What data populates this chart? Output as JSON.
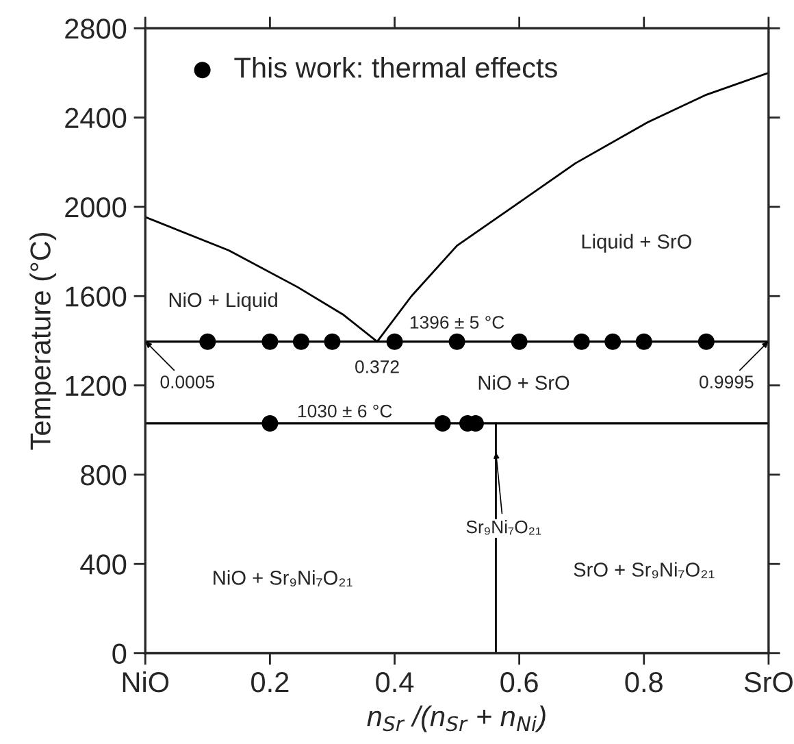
{
  "chart_data": {
    "type": "line",
    "xlabel": "n$_{Sr}$ /(n$_{Sr}$ + n$_{Ni}$)",
    "ylabel": "Temperature (°C)",
    "xlim": [
      0,
      1
    ],
    "xticks": [
      {
        "value": 0,
        "label": "NiO"
      },
      0.2,
      0.4,
      0.6,
      0.8,
      {
        "value": 1,
        "label": "SrO"
      }
    ],
    "ylim": [
      0,
      2800
    ],
    "yticks": [
      0,
      400,
      800,
      1200,
      1600,
      2000,
      2400,
      2800
    ],
    "series": [
      {
        "color": "#000000",
        "x": [
          0,
          0.134,
          0.244,
          0.317,
          0.372
        ],
        "values": [
          1954,
          1805,
          1641,
          1518,
          1396
        ]
      },
      {
        "color": "#000000",
        "x": [
          0.372,
          0.427,
          0.5,
          0.595,
          0.69,
          0.806,
          0.9,
          1.0
        ],
        "values": [
          1396,
          1600,
          1826,
          2010,
          2195,
          2379,
          2502,
          2600
        ]
      },
      {
        "color": "#000000",
        "x": [
          0.5625,
          0.5625
        ],
        "values": [
          0,
          1030
        ]
      },
      {
        "type": "scatter",
        "marker": "circle",
        "name": "This work: thermal effects",
        "color": "#000000",
        "x": [
          0.1,
          0.2,
          0.25,
          0.3,
          0.4,
          0.5,
          0.6,
          0.7,
          0.75,
          0.8,
          0.9,
          0.2,
          0.477,
          0.517,
          0.53
        ],
        "values": [
          1396,
          1396,
          1396,
          1396,
          1396,
          1396,
          1396,
          1396,
          1396,
          1396,
          1396,
          1030,
          1030,
          1030,
          1030
        ]
      }
    ],
    "ref_lines": [
      {
        "axis": "y",
        "value": 1396,
        "color": "#000000"
      },
      {
        "axis": "y",
        "value": 1030,
        "color": "#000000"
      }
    ],
    "annotations": [
      "NiO + Liquid",
      "Liquid + SrO",
      "1396 ± 5 °C",
      "NiO + SrO",
      "1030 ± 6 °C",
      "NiO + Sr₉Ni₇O₂₁",
      "SrO + Sr₉Ni₇O₂₁",
      {
        "text": "0.0005",
        "x": 0.0005,
        "y": 1396
      },
      {
        "text": "0.9995",
        "x": 0.9995,
        "y": 1396
      },
      {
        "text": "0.372",
        "x": 0.372,
        "y": 1396
      },
      {
        "text": "Sr₉Ni₇O₂₁",
        "x": 0.5625,
        "y": 900
      }
    ],
    "legend": "top left",
    "grid": false
  }
}
